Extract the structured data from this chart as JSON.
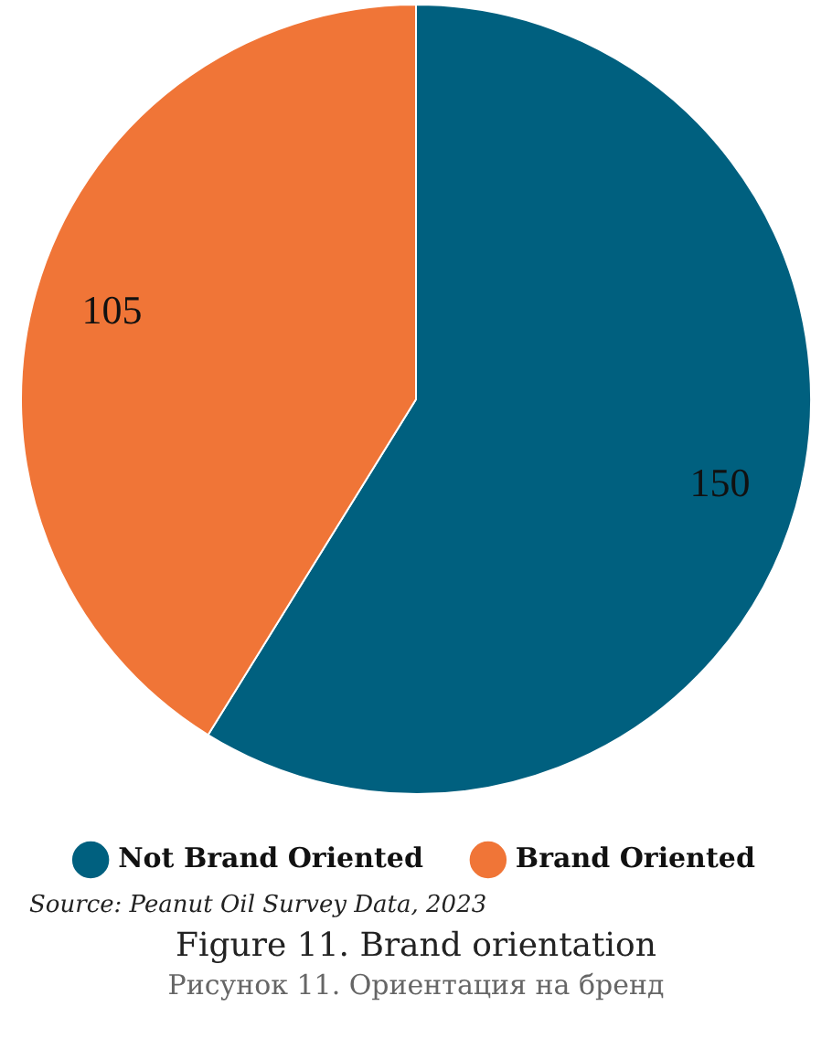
{
  "chart_data": {
    "type": "pie",
    "title": "Figure 11. Brand orientation",
    "subtitle": "Рисунок 11. Ориентация на бренд",
    "categories": [
      "Not Brand Oriented",
      "Brand Oriented"
    ],
    "values": [
      150,
      105
    ],
    "colors": [
      "#00607f",
      "#f07537"
    ],
    "data_labels": true,
    "legend": "bottom",
    "annotations": [
      "Source: Peanut Oil Survey Data, 2023"
    ]
  }
}
